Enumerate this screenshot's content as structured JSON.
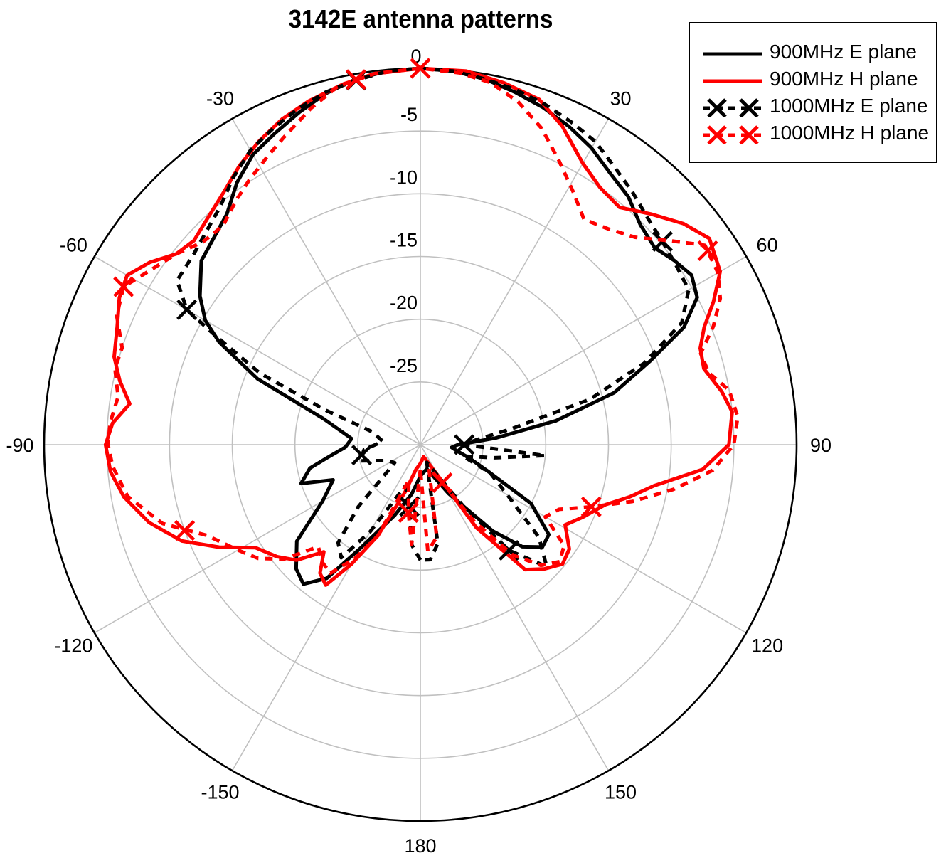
{
  "chart_data": {
    "type": "polar-line",
    "title": "3142E antenna patterns",
    "radial_axis": {
      "unit": "dB",
      "range": [
        -30,
        0
      ],
      "ticks": [
        0,
        -5,
        -10,
        -15,
        -20,
        -25
      ],
      "tick_labels": [
        "0",
        "-5",
        "-10",
        "-15",
        "-20",
        "-25"
      ]
    },
    "angular_axis": {
      "unit": "deg",
      "zero_location": "top",
      "direction": "clockwise",
      "ticks": [
        0,
        30,
        60,
        90,
        120,
        150,
        180,
        -150,
        -120,
        -90,
        -60,
        -30
      ],
      "tick_labels": [
        "0",
        "30",
        "60",
        "90",
        "120",
        "150",
        "180",
        "-150",
        "-120",
        "-90",
        "-60",
        "-30"
      ]
    },
    "grid": true,
    "legend_position": "upper right",
    "series": [
      {
        "name": "900MHz E plane",
        "color": "#000000",
        "style": "solid",
        "marker": "none",
        "points": [
          [
            -180,
            -27.5
          ],
          [
            -170,
            -26
          ],
          [
            -160,
            -24
          ],
          [
            -150,
            -20.5
          ],
          [
            -145,
            -17
          ],
          [
            -140,
            -15.5
          ],
          [
            -135,
            -16
          ],
          [
            -128,
            -17.5
          ],
          [
            -120,
            -21
          ],
          [
            -112,
            -22.5
          ],
          [
            -108,
            -20
          ],
          [
            -102,
            -21
          ],
          [
            -98,
            -22.5
          ],
          [
            -92,
            -24
          ],
          [
            -85,
            -24.5
          ],
          [
            -75,
            -22
          ],
          [
            -68,
            -16
          ],
          [
            -63,
            -12
          ],
          [
            -60,
            -10.2
          ],
          [
            -56,
            -8.8
          ],
          [
            -50,
            -7.2
          ],
          [
            -45,
            -6.7
          ],
          [
            -40,
            -6.0
          ],
          [
            -35,
            -4.5
          ],
          [
            -30,
            -3.3
          ],
          [
            -25,
            -2.6
          ],
          [
            -20,
            -1.8
          ],
          [
            -15,
            -1.0
          ],
          [
            -10,
            -0.4
          ],
          [
            -5,
            -0.1
          ],
          [
            0,
            0
          ],
          [
            5,
            -0.1
          ],
          [
            10,
            -0.4
          ],
          [
            15,
            -0.9
          ],
          [
            20,
            -1.4
          ],
          [
            25,
            -2.0
          ],
          [
            30,
            -2.7
          ],
          [
            35,
            -3.6
          ],
          [
            40,
            -4.2
          ],
          [
            45,
            -5.2
          ],
          [
            50,
            -5.6
          ],
          [
            54,
            -5.0
          ],
          [
            58,
            -4.5
          ],
          [
            62,
            -5.0
          ],
          [
            66,
            -7.0
          ],
          [
            70,
            -10.5
          ],
          [
            75,
            -14.0
          ],
          [
            80,
            -19.0
          ],
          [
            85,
            -24.0
          ],
          [
            90,
            -27.0
          ],
          [
            95,
            -27.5
          ],
          [
            100,
            -27
          ],
          [
            105,
            -26
          ],
          [
            112,
            -24
          ],
          [
            118,
            -20
          ],
          [
            125,
            -17.5
          ],
          [
            130,
            -17.3
          ],
          [
            135,
            -18.5
          ],
          [
            140,
            -21
          ],
          [
            150,
            -25.5
          ],
          [
            165,
            -28
          ],
          [
            180,
            -27.5
          ]
        ]
      },
      {
        "name": "900MHz H plane",
        "color": "#ff0000",
        "style": "solid",
        "marker": "none",
        "points": [
          [
            -180,
            -28.5
          ],
          [
            -170,
            -28
          ],
          [
            -162,
            -26
          ],
          [
            -155,
            -22
          ],
          [
            -150,
            -19
          ],
          [
            -146,
            -16.5
          ],
          [
            -142,
            -17
          ],
          [
            -138,
            -18.5
          ],
          [
            -133,
            -16.5
          ],
          [
            -128,
            -15.5
          ],
          [
            -122,
            -14.5
          ],
          [
            -117,
            -12
          ],
          [
            -112,
            -9.5
          ],
          [
            -106,
            -7.5
          ],
          [
            -100,
            -6.0
          ],
          [
            -95,
            -5.2
          ],
          [
            -90,
            -4.9
          ],
          [
            -86,
            -5.4
          ],
          [
            -82,
            -6.6
          ],
          [
            -78,
            -5.5
          ],
          [
            -74,
            -4.6
          ],
          [
            -69,
            -4.1
          ],
          [
            -64,
            -3.3
          ],
          [
            -60,
            -3.0
          ],
          [
            -56,
            -4.0
          ],
          [
            -52,
            -5.3
          ],
          [
            -48,
            -5.7
          ],
          [
            -43,
            -5.2
          ],
          [
            -38,
            -4.5
          ],
          [
            -33,
            -3.5
          ],
          [
            -28,
            -2.6
          ],
          [
            -23,
            -1.8
          ],
          [
            -18,
            -1.2
          ],
          [
            -12,
            -0.6
          ],
          [
            -7,
            -0.2
          ],
          [
            0,
            0
          ],
          [
            7,
            0
          ],
          [
            13,
            -0.4
          ],
          [
            19,
            -0.9
          ],
          [
            24,
            -2.2
          ],
          [
            30,
            -4.1
          ],
          [
            35,
            -5.0
          ],
          [
            40,
            -5.3
          ],
          [
            45,
            -4.0
          ],
          [
            50,
            -2.6
          ],
          [
            54.5,
            -1.7
          ],
          [
            60,
            -2.4
          ],
          [
            64,
            -4.0
          ],
          [
            67.5,
            -5.5
          ],
          [
            71,
            -6.4
          ],
          [
            75,
            -6.6
          ],
          [
            80,
            -5.6
          ],
          [
            84,
            -5.0
          ],
          [
            90,
            -5.4
          ],
          [
            95,
            -7.4
          ],
          [
            100,
            -11.1
          ],
          [
            104,
            -12.8
          ],
          [
            108,
            -14.5
          ],
          [
            114,
            -15.8
          ],
          [
            119,
            -16.8
          ],
          [
            125,
            -15.5
          ],
          [
            130,
            -15.2
          ],
          [
            135,
            -16.0
          ],
          [
            140,
            -17.0
          ],
          [
            146,
            -22.0
          ],
          [
            152,
            -27.7
          ],
          [
            165,
            -29
          ],
          [
            180,
            -28.5
          ]
        ]
      },
      {
        "name": "1000MHz E plane",
        "color": "#000000",
        "style": "dashed",
        "marker": "x",
        "points": [
          [
            -180,
            -20.8
          ],
          [
            -175,
            -22
          ],
          [
            -170,
            -25
          ],
          [
            -160,
            -26.5
          ],
          [
            -150,
            -22
          ],
          [
            -145,
            -19
          ],
          [
            -140,
            -19.8
          ],
          [
            -135,
            -23
          ],
          [
            -125,
            -27.5
          ],
          [
            -115,
            -27
          ],
          [
            -105,
            -25
          ],
          [
            -95,
            -25.5
          ],
          [
            -85,
            -27
          ],
          [
            -75,
            -26
          ],
          [
            -70,
            -22
          ],
          [
            -66,
            -16
          ],
          [
            -62,
            -11.5
          ],
          [
            -60,
            -8.5
          ],
          [
            -56,
            -6.6
          ],
          [
            -50,
            -6.4
          ],
          [
            -45,
            -5.9
          ],
          [
            -40,
            -5.2
          ],
          [
            -35,
            -4.0
          ],
          [
            -30,
            -2.9
          ],
          [
            -25,
            -2.2
          ],
          [
            -20,
            -1.5
          ],
          [
            -15,
            -0.9
          ],
          [
            -10,
            -0.5
          ],
          [
            -5,
            -0.1
          ],
          [
            0,
            0
          ],
          [
            5,
            -0.1
          ],
          [
            10,
            -0.4
          ],
          [
            15,
            -0.7
          ],
          [
            20,
            -1.1
          ],
          [
            25,
            -1.6
          ],
          [
            30,
            -2.1
          ],
          [
            35,
            -3.0
          ],
          [
            40,
            -3.7
          ],
          [
            45,
            -4.4
          ],
          [
            50,
            -4.8
          ],
          [
            55,
            -5.1
          ],
          [
            60,
            -5.3
          ],
          [
            65,
            -7.0
          ],
          [
            70,
            -11
          ],
          [
            75,
            -16
          ],
          [
            80,
            -22.5
          ],
          [
            85,
            -25.5
          ],
          [
            90,
            -26.5
          ],
          [
            95,
            -20
          ],
          [
            100,
            -24
          ],
          [
            105,
            -26.5
          ],
          [
            112,
            -24
          ],
          [
            120,
            -22
          ],
          [
            128,
            -18
          ],
          [
            134,
            -16.0
          ],
          [
            140,
            -19
          ],
          [
            145,
            -24
          ],
          [
            150,
            -27
          ],
          [
            160,
            -28.5
          ],
          [
            170,
            -22
          ],
          [
            175,
            -20.8
          ],
          [
            180,
            -20.8
          ]
        ],
        "marker_angles": [
          -170,
          -100,
          -60,
          -10,
          50,
          90,
          140
        ]
      },
      {
        "name": "1000MHz H plane",
        "color": "#ff0000",
        "style": "dashed",
        "marker": "x",
        "points": [
          [
            -180,
            -28
          ],
          [
            -175,
            -22
          ],
          [
            -170,
            -24.5
          ],
          [
            -162,
            -27
          ],
          [
            -155,
            -22
          ],
          [
            -150,
            -19.5
          ],
          [
            -145,
            -17.5
          ],
          [
            -140,
            -17.8
          ],
          [
            -135,
            -18.5
          ],
          [
            -130,
            -15.8
          ],
          [
            -125,
            -14.2
          ],
          [
            -120,
            -13.2
          ],
          [
            -113,
            -11.5
          ],
          [
            -107,
            -8.5
          ],
          [
            -100,
            -6.3
          ],
          [
            -94,
            -5.4
          ],
          [
            -90,
            -5.1
          ],
          [
            -86,
            -5.2
          ],
          [
            -81,
            -5.6
          ],
          [
            -76,
            -4.9
          ],
          [
            -72,
            -5.0
          ],
          [
            -67,
            -3.7
          ],
          [
            -62,
            -3.2
          ],
          [
            -57,
            -4.4
          ],
          [
            -52,
            -5.3
          ],
          [
            -47,
            -6.3
          ],
          [
            -42,
            -6.5
          ],
          [
            -37,
            -5.6
          ],
          [
            -33,
            -4.9
          ],
          [
            -28,
            -4.0
          ],
          [
            -24,
            -3.2
          ],
          [
            -18,
            -1.8
          ],
          [
            -13,
            -0.7
          ],
          [
            -7,
            -0.2
          ],
          [
            0,
            0
          ],
          [
            6,
            -0.2
          ],
          [
            11,
            -0.6
          ],
          [
            16,
            -1.6
          ],
          [
            21,
            -3.0
          ],
          [
            26,
            -4.8
          ],
          [
            31,
            -6.4
          ],
          [
            36,
            -7.8
          ],
          [
            41,
            -7.2
          ],
          [
            46,
            -6.2
          ],
          [
            51,
            -4.2
          ],
          [
            55,
            -2.3
          ],
          [
            60,
            -2.6
          ],
          [
            64,
            -3.4
          ],
          [
            68,
            -4.8
          ],
          [
            72,
            -6.5
          ],
          [
            76,
            -6.3
          ],
          [
            80,
            -5.0
          ],
          [
            85,
            -4.6
          ],
          [
            90,
            -5.0
          ],
          [
            95,
            -6.6
          ],
          [
            100,
            -9.5
          ],
          [
            105,
            -12.5
          ],
          [
            110,
            -15.5
          ],
          [
            115,
            -17.8
          ],
          [
            120,
            -18.5
          ],
          [
            125,
            -16.0
          ],
          [
            130,
            -15.5
          ],
          [
            135,
            -16.4
          ],
          [
            140,
            -18.5
          ],
          [
            145,
            -22.5
          ],
          [
            150,
            -26.5
          ],
          [
            160,
            -28
          ],
          [
            170,
            -22.5
          ],
          [
            176,
            -21.5
          ],
          [
            180,
            -28
          ]
        ],
        "marker_angles": [
          -170,
          -110,
          -62,
          -10,
          0,
          56,
          110,
          150
        ]
      }
    ]
  },
  "legend": {
    "items": [
      {
        "label": "900MHz E plane",
        "color": "#000000",
        "style": "solid"
      },
      {
        "label": "900MHz H plane",
        "color": "#ff0000",
        "style": "solid"
      },
      {
        "label": "1000MHz E plane",
        "color": "#000000",
        "style": "dashed-x"
      },
      {
        "label": "1000MHz H plane",
        "color": "#ff0000",
        "style": "dashed-x"
      }
    ]
  },
  "colors": {
    "grid": "#c0c0c0",
    "axis": "#000000",
    "red": "#ff0000",
    "black": "#000000"
  }
}
